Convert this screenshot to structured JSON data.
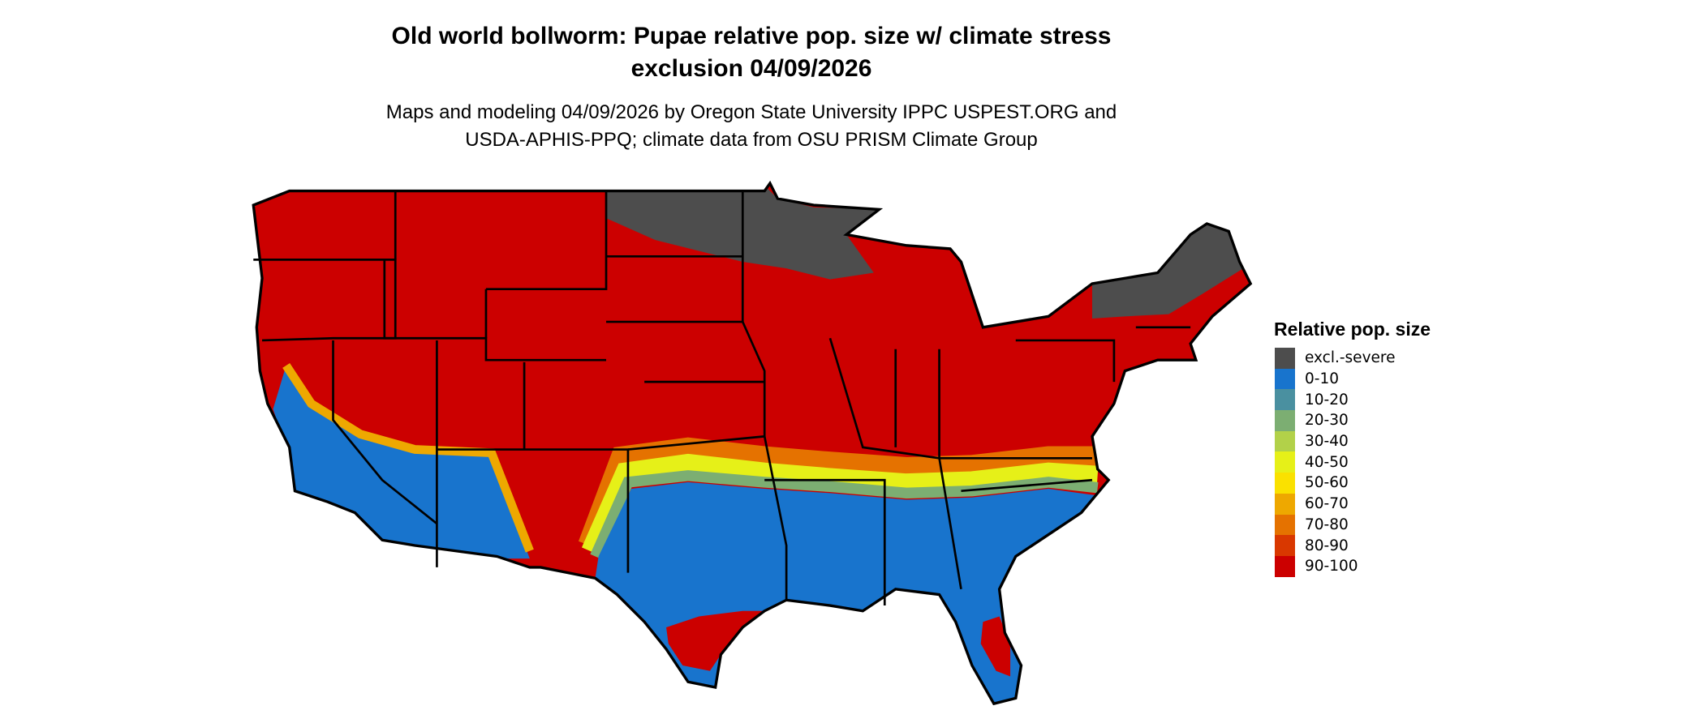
{
  "title_line1": "Old world bollworm: Pupae relative pop. size w/ climate stress",
  "title_line2": "exclusion 04/09/2026",
  "subtitle_line1": "Maps and modeling 04/09/2026 by Oregon State University IPPC USPEST.ORG and",
  "subtitle_line2": "USDA-APHIS-PPQ; climate data from OSU PRISM Climate Group",
  "legend": {
    "title": "Relative pop. size",
    "items": [
      {
        "label": "excl.-severe",
        "color": "#4d4d4d"
      },
      {
        "label": "0-10",
        "color": "#1874cd"
      },
      {
        "label": "10-20",
        "color": "#4a90a0"
      },
      {
        "label": "20-30",
        "color": "#7cae72"
      },
      {
        "label": "30-40",
        "color": "#b2d149"
      },
      {
        "label": "40-50",
        "color": "#e6f018"
      },
      {
        "label": "50-60",
        "color": "#fae100"
      },
      {
        "label": "60-70",
        "color": "#eea800"
      },
      {
        "label": "70-80",
        "color": "#e57200"
      },
      {
        "label": "80-90",
        "color": "#d93800"
      },
      {
        "label": "90-100",
        "color": "#cc0000"
      }
    ]
  },
  "map": {
    "region": "Contiguous United States",
    "dominant_class": "90-100"
  }
}
